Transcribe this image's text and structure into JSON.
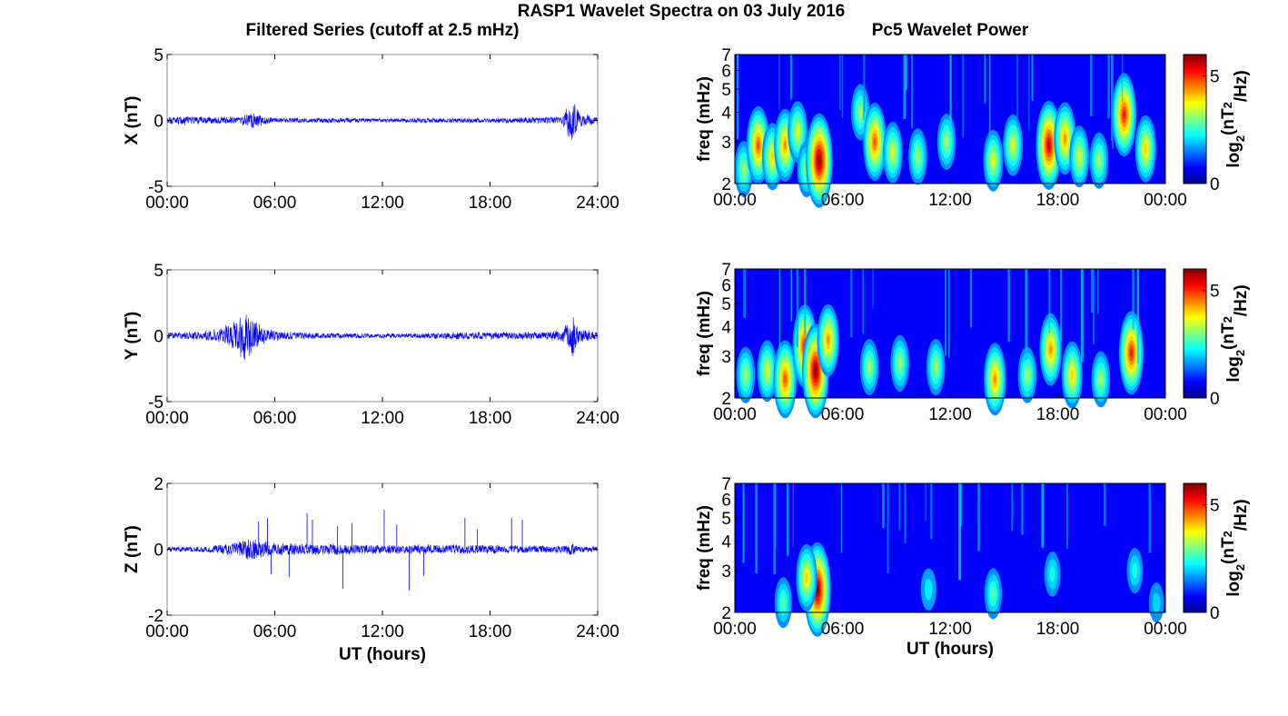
{
  "figure": {
    "title": "RASP1 Wavelet Spectra on 03 July 2016",
    "left_column_title": "Filtered Series (cutoff at 2.5 mHz)",
    "right_column_title": "Pc5 Wavelet Power",
    "colormap": "jet"
  },
  "chart_data": [
    {
      "type": "line",
      "panel": "X",
      "ylabel": "X (nT)",
      "xlabel": "",
      "ylim": [
        -5,
        5
      ],
      "yticks": [
        "5",
        "0",
        "-5"
      ],
      "xticks": [
        "00:00",
        "06:00",
        "12:00",
        "18:00",
        "24:00"
      ],
      "xlim_hours": [
        0,
        24
      ],
      "line_color": "#0000ff",
      "grid": false,
      "envelope": {
        "x_hours": [
          0,
          1,
          2,
          3,
          4,
          4.8,
          5.5,
          6,
          8,
          10,
          12,
          14,
          16,
          18,
          20,
          22,
          22.6,
          23,
          24
        ],
        "amplitude_nT": [
          0.3,
          0.35,
          0.3,
          0.3,
          0.3,
          0.7,
          0.3,
          0.2,
          0.2,
          0.2,
          0.15,
          0.2,
          0.2,
          0.2,
          0.25,
          0.3,
          2.0,
          0.5,
          0.3
        ]
      }
    },
    {
      "type": "line",
      "panel": "Y",
      "ylabel": "Y (nT)",
      "xlabel": "",
      "ylim": [
        -5,
        5
      ],
      "yticks": [
        "5",
        "0",
        "-5"
      ],
      "xticks": [
        "00:00",
        "06:00",
        "12:00",
        "18:00",
        "24:00"
      ],
      "xlim_hours": [
        0,
        24
      ],
      "line_color": "#0000ff",
      "grid": false,
      "envelope": {
        "x_hours": [
          0,
          1,
          2,
          3,
          3.8,
          4.3,
          4.8,
          5.3,
          6,
          8,
          10,
          12,
          14,
          16,
          18,
          20,
          22,
          22.6,
          23,
          24
        ],
        "amplitude_nT": [
          0.3,
          0.3,
          0.35,
          0.6,
          1.3,
          2.0,
          1.6,
          0.7,
          0.4,
          0.25,
          0.2,
          0.2,
          0.2,
          0.3,
          0.3,
          0.3,
          0.4,
          1.8,
          0.6,
          0.3
        ]
      }
    },
    {
      "type": "line",
      "panel": "Z",
      "ylabel": "Z (nT)",
      "xlabel": "UT (hours)",
      "ylim": [
        -2,
        2
      ],
      "yticks": [
        "2",
        "0",
        "-2"
      ],
      "xticks": [
        "00:00",
        "06:00",
        "12:00",
        "18:00",
        "24:00"
      ],
      "xlim_hours": [
        0,
        24
      ],
      "line_color": "#0000ff",
      "grid": false,
      "envelope": {
        "x_hours": [
          0,
          2,
          3,
          4,
          4.5,
          5,
          6,
          8,
          10,
          12,
          14,
          16,
          18,
          20,
          22,
          22.6,
          23,
          24
        ],
        "amplitude_nT": [
          0.08,
          0.1,
          0.15,
          0.25,
          0.35,
          0.3,
          0.2,
          0.18,
          0.18,
          0.15,
          0.15,
          0.15,
          0.15,
          0.12,
          0.12,
          0.2,
          0.1,
          0.1
        ]
      },
      "spikes": [
        {
          "x_hours": 5.1,
          "y_nT": 0.85
        },
        {
          "x_hours": 5.6,
          "y_nT": 0.95
        },
        {
          "x_hours": 5.8,
          "y_nT": -0.75
        },
        {
          "x_hours": 6.8,
          "y_nT": -0.85
        },
        {
          "x_hours": 7.8,
          "y_nT": 1.1
        },
        {
          "x_hours": 8.1,
          "y_nT": 0.9
        },
        {
          "x_hours": 9.5,
          "y_nT": 0.7
        },
        {
          "x_hours": 9.8,
          "y_nT": -1.2
        },
        {
          "x_hours": 10.3,
          "y_nT": 0.8
        },
        {
          "x_hours": 12.1,
          "y_nT": 1.2
        },
        {
          "x_hours": 12.8,
          "y_nT": 0.75
        },
        {
          "x_hours": 13.5,
          "y_nT": -1.25
        },
        {
          "x_hours": 14.3,
          "y_nT": -0.8
        },
        {
          "x_hours": 16.6,
          "y_nT": 0.95
        },
        {
          "x_hours": 17.3,
          "y_nT": 0.6
        },
        {
          "x_hours": 19.2,
          "y_nT": 0.95
        },
        {
          "x_hours": 19.8,
          "y_nT": 0.9
        }
      ]
    },
    {
      "type": "heatmap",
      "panel": "X",
      "ylabel": "freq (mHz)",
      "xlabel": "",
      "yscale": "log",
      "ylim": [
        2,
        7
      ],
      "yticks": [
        "2",
        "3",
        "4",
        "5",
        "6",
        "7"
      ],
      "xticks": [
        "00:00",
        "06:00",
        "12:00",
        "18:00",
        "00:00"
      ],
      "xlim_hours": [
        0,
        24
      ],
      "colorbar": {
        "label": "log2(nT^2/Hz)",
        "range": [
          0,
          6
        ],
        "ticks": [
          "0",
          "5"
        ]
      },
      "hotspots": [
        {
          "t_hours": 0.5,
          "f_mHz": 2.3,
          "power": 2.5
        },
        {
          "t_hours": 1.3,
          "f_mHz": 2.9,
          "power": 4.5
        },
        {
          "t_hours": 2.1,
          "f_mHz": 2.6,
          "power": 3.5
        },
        {
          "t_hours": 2.8,
          "f_mHz": 2.9,
          "power": 4.0
        },
        {
          "t_hours": 3.5,
          "f_mHz": 3.3,
          "power": 3.0
        },
        {
          "t_hours": 4.0,
          "f_mHz": 2.3,
          "power": 2.5
        },
        {
          "t_hours": 4.7,
          "f_mHz": 2.5,
          "power": 6.0
        },
        {
          "t_hours": 7.0,
          "f_mHz": 4.0,
          "power": 2.5
        },
        {
          "t_hours": 7.8,
          "f_mHz": 3.0,
          "power": 4.5
        },
        {
          "t_hours": 8.8,
          "f_mHz": 2.7,
          "power": 3.0
        },
        {
          "t_hours": 10.2,
          "f_mHz": 2.6,
          "power": 2.5
        },
        {
          "t_hours": 11.8,
          "f_mHz": 3.0,
          "power": 2.5
        },
        {
          "t_hours": 14.4,
          "f_mHz": 2.5,
          "power": 3.0
        },
        {
          "t_hours": 15.5,
          "f_mHz": 2.9,
          "power": 3.0
        },
        {
          "t_hours": 17.5,
          "f_mHz": 2.9,
          "power": 5.5
        },
        {
          "t_hours": 18.4,
          "f_mHz": 3.1,
          "power": 4.0
        },
        {
          "t_hours": 19.2,
          "f_mHz": 2.6,
          "power": 3.0
        },
        {
          "t_hours": 20.3,
          "f_mHz": 2.5,
          "power": 2.5
        },
        {
          "t_hours": 21.7,
          "f_mHz": 3.9,
          "power": 5.0
        },
        {
          "t_hours": 22.9,
          "f_mHz": 2.8,
          "power": 3.5
        }
      ]
    },
    {
      "type": "heatmap",
      "panel": "Y",
      "ylabel": "freq (mHz)",
      "xlabel": "",
      "yscale": "log",
      "ylim": [
        2,
        7
      ],
      "yticks": [
        "2",
        "3",
        "4",
        "5",
        "6",
        "7"
      ],
      "xticks": [
        "00:00",
        "06:00",
        "12:00",
        "18:00",
        "00:00"
      ],
      "xlim_hours": [
        0,
        24
      ],
      "colorbar": {
        "label": "log2(nT^2/Hz)",
        "range": [
          0,
          6
        ],
        "ticks": [
          "0",
          "5"
        ]
      },
      "hotspots": [
        {
          "t_hours": 0.6,
          "f_mHz": 2.5,
          "power": 2.5
        },
        {
          "t_hours": 1.8,
          "f_mHz": 2.6,
          "power": 3.0
        },
        {
          "t_hours": 2.8,
          "f_mHz": 2.4,
          "power": 4.5
        },
        {
          "t_hours": 3.9,
          "f_mHz": 3.3,
          "power": 5.0
        },
        {
          "t_hours": 4.5,
          "f_mHz": 2.6,
          "power": 6.0
        },
        {
          "t_hours": 5.2,
          "f_mHz": 3.5,
          "power": 4.0
        },
        {
          "t_hours": 7.5,
          "f_mHz": 2.7,
          "power": 2.5
        },
        {
          "t_hours": 9.2,
          "f_mHz": 2.8,
          "power": 2.5
        },
        {
          "t_hours": 11.2,
          "f_mHz": 2.7,
          "power": 2.5
        },
        {
          "t_hours": 14.5,
          "f_mHz": 2.4,
          "power": 4.0
        },
        {
          "t_hours": 16.3,
          "f_mHz": 2.5,
          "power": 2.5
        },
        {
          "t_hours": 17.6,
          "f_mHz": 3.2,
          "power": 4.0
        },
        {
          "t_hours": 18.8,
          "f_mHz": 2.5,
          "power": 3.5
        },
        {
          "t_hours": 20.4,
          "f_mHz": 2.4,
          "power": 2.5
        },
        {
          "t_hours": 22.1,
          "f_mHz": 3.1,
          "power": 5.0
        }
      ]
    },
    {
      "type": "heatmap",
      "panel": "Z",
      "ylabel": "freq (mHz)",
      "xlabel": "UT (hours)",
      "yscale": "log",
      "ylim": [
        2,
        7
      ],
      "yticks": [
        "2",
        "3",
        "4",
        "5",
        "6",
        "7"
      ],
      "xticks": [
        "00:00",
        "06:00",
        "12:00",
        "18:00",
        "00:00"
      ],
      "xlim_hours": [
        0,
        24
      ],
      "colorbar": {
        "label": "log2(nT^2/Hz)",
        "range": [
          0,
          6
        ],
        "ticks": [
          "0",
          "5"
        ]
      },
      "hotspots": [
        {
          "t_hours": 4.6,
          "f_mHz": 2.5,
          "power": 6.0
        },
        {
          "t_hours": 4.0,
          "f_mHz": 2.8,
          "power": 3.5
        },
        {
          "t_hours": 2.7,
          "f_mHz": 2.2,
          "power": 2.0
        },
        {
          "t_hours": 10.8,
          "f_mHz": 2.5,
          "power": 1.2
        },
        {
          "t_hours": 14.4,
          "f_mHz": 2.4,
          "power": 2.0
        },
        {
          "t_hours": 17.7,
          "f_mHz": 2.9,
          "power": 1.5
        },
        {
          "t_hours": 22.3,
          "f_mHz": 3.0,
          "power": 1.5
        },
        {
          "t_hours": 23.5,
          "f_mHz": 2.2,
          "power": 1.0
        }
      ]
    }
  ]
}
